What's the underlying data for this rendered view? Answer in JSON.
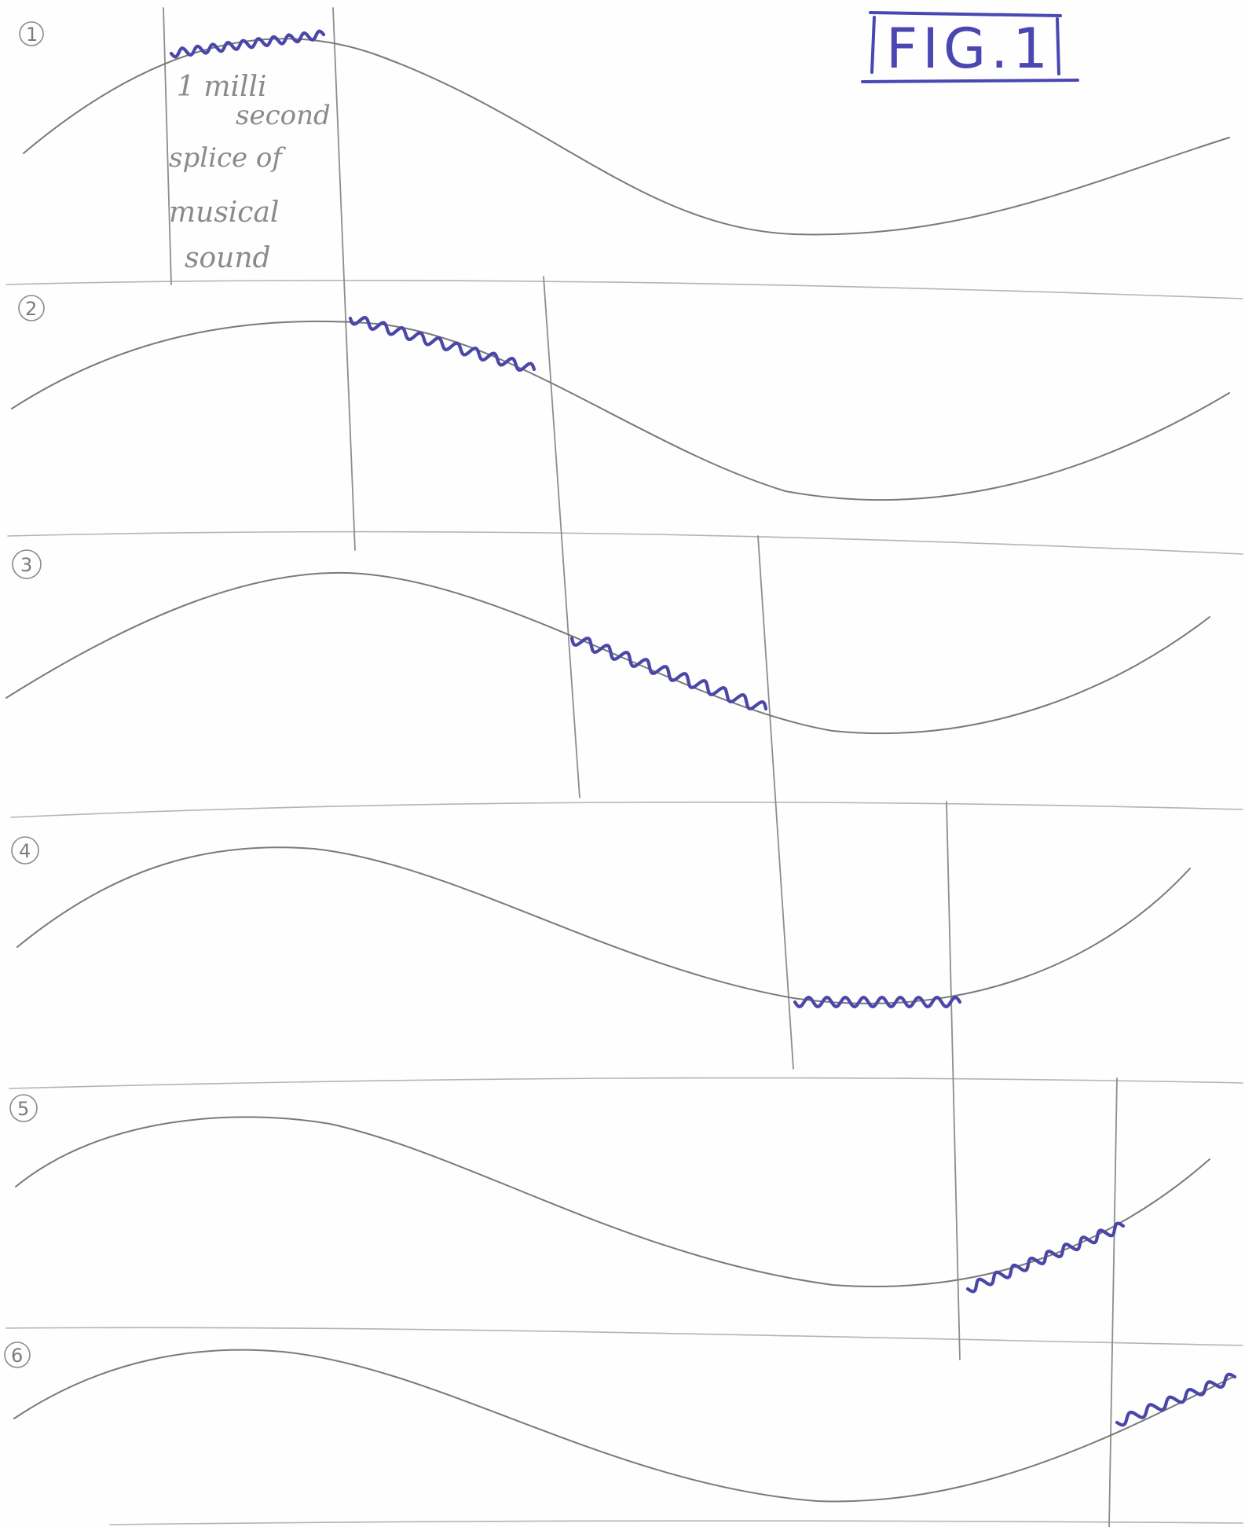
{
  "figure": {
    "label": "FIG.1"
  },
  "annotation": {
    "lines": [
      "1 milli",
      "second",
      "splice of",
      "musical",
      "sound"
    ]
  },
  "panels": [
    {
      "number": "1"
    },
    {
      "number": "2"
    },
    {
      "number": "3"
    },
    {
      "number": "4"
    },
    {
      "number": "5"
    },
    {
      "number": "6"
    }
  ],
  "colors": {
    "ink": "#4a47a8",
    "pencil": "#8d8d8d"
  }
}
